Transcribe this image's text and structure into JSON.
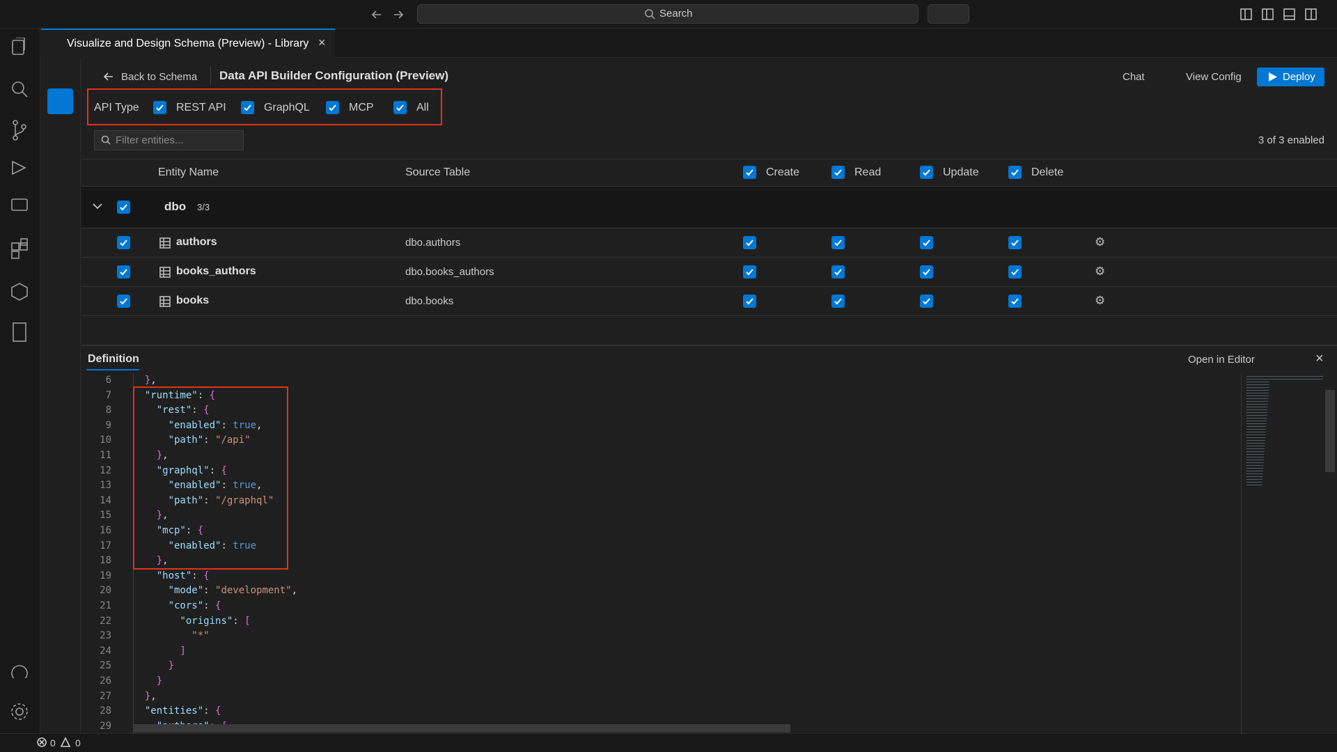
{
  "titlebar": {
    "search": "Search"
  },
  "tab": {
    "title": "Visualize and Design Schema (Preview) - Library"
  },
  "header": {
    "back": "Back to Schema",
    "title": "Data API Builder Configuration (Preview)",
    "actions": [
      "Chat",
      "View Config",
      "Deploy"
    ]
  },
  "api_type": {
    "label": "API Type",
    "options": [
      "REST API",
      "GraphQL",
      "MCP",
      "All"
    ]
  },
  "filter": {
    "placeholder": "Filter entities...",
    "status": "3 of 3 enabled"
  },
  "table": {
    "columns": [
      "Entity Name",
      "Source Table"
    ],
    "permissions": [
      "Create",
      "Read",
      "Update",
      "Delete"
    ],
    "group": {
      "name": "dbo",
      "count": "3/3"
    },
    "rows": [
      {
        "name": "authors",
        "source": "dbo.authors"
      },
      {
        "name": "books_authors",
        "source": "dbo.books_authors"
      },
      {
        "name": "books",
        "source": "dbo.books"
      }
    ]
  },
  "definition": {
    "title": "Definition",
    "open": "Open in Editor",
    "lines": [
      {
        "number": 6,
        "text": "  },"
      },
      {
        "number": 7,
        "text": "  \"runtime\": {"
      },
      {
        "number": 8,
        "text": "    \"rest\": {"
      },
      {
        "number": 9,
        "text": "      \"enabled\": true,"
      },
      {
        "number": 10,
        "text": "      \"path\": \"/api\""
      },
      {
        "number": 11,
        "text": "    },"
      },
      {
        "number": 12,
        "text": "    \"graphql\": {"
      },
      {
        "number": 13,
        "text": "      \"enabled\": true,"
      },
      {
        "number": 14,
        "text": "      \"path\": \"/graphql\""
      },
      {
        "number": 15,
        "text": "    },"
      },
      {
        "number": 16,
        "text": "    \"mcp\": {"
      },
      {
        "number": 17,
        "text": "      \"enabled\": true"
      },
      {
        "number": 18,
        "text": "    },"
      },
      {
        "number": 19,
        "text": "    \"host\": {"
      },
      {
        "number": 20,
        "text": "      \"mode\": \"development\","
      },
      {
        "number": 21,
        "text": "      \"cors\": {"
      },
      {
        "number": 22,
        "text": "        \"origins\": ["
      },
      {
        "number": 23,
        "text": "          \"*\""
      },
      {
        "number": 24,
        "text": "        ]"
      },
      {
        "number": 25,
        "text": "      }"
      },
      {
        "number": 26,
        "text": "    }"
      },
      {
        "number": 27,
        "text": "  },"
      },
      {
        "number": 28,
        "text": "  \"entities\": {"
      },
      {
        "number": 29,
        "text": "    \"authors\": {"
      }
    ]
  },
  "statusbar": {
    "errors": 0,
    "warnings": 0
  }
}
